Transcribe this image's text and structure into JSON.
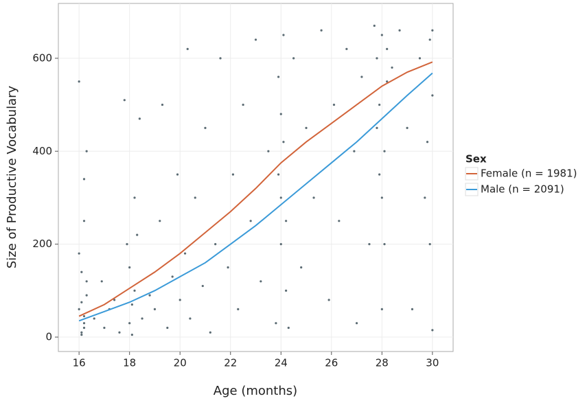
{
  "chart_data": {
    "type": "scatter",
    "x_label": "Age (months)",
    "y_label": "Size of Productive Vocabulary",
    "xlim": [
      15.18,
      30.82
    ],
    "ylim": [
      -31,
      718
    ],
    "xticks": [
      16,
      18,
      20,
      22,
      24,
      26,
      28,
      30
    ],
    "yticks": [
      0,
      200,
      400,
      600
    ],
    "grid": true,
    "legend_title": "Sex",
    "legend_position": "right",
    "series": [
      {
        "type": "scatter",
        "color": "#5b6b73",
        "x": [
          16.1,
          16.2,
          16.0,
          16.3,
          16.1,
          16.2,
          16.0,
          16.3,
          16.1,
          16.2,
          16.1,
          16.2,
          16.3,
          16.0,
          16.2,
          16.6,
          16.9,
          17.0,
          17.2,
          17.4,
          17.6,
          17.8,
          17.9,
          18.0,
          18.1,
          18.2,
          18.0,
          18.3,
          18.1,
          18.2,
          18.4,
          18.5,
          18.8,
          19.0,
          19.2,
          19.3,
          19.5,
          19.7,
          19.9,
          20.0,
          20.2,
          20.3,
          20.4,
          20.6,
          20.9,
          21.0,
          21.2,
          21.4,
          21.6,
          21.9,
          22.1,
          22.3,
          22.5,
          22.8,
          23.0,
          23.2,
          23.5,
          23.8,
          23.9,
          24.0,
          24.0,
          24.1,
          24.2,
          24.1,
          24.0,
          24.3,
          24.2,
          23.9,
          24.5,
          24.8,
          25.0,
          25.3,
          25.6,
          25.9,
          26.1,
          26.3,
          26.6,
          26.9,
          27.0,
          27.2,
          27.5,
          27.7,
          27.8,
          27.9,
          28.0,
          28.1,
          28.0,
          28.2,
          27.8,
          28.1,
          28.0,
          28.2,
          27.9,
          28.4,
          28.7,
          29.0,
          29.2,
          29.5,
          29.7,
          29.9,
          30.0,
          29.9,
          30.0,
          29.8,
          30.0
        ],
        "values": [
          10,
          30,
          60,
          90,
          140,
          250,
          550,
          400,
          5,
          45,
          75,
          20,
          120,
          180,
          340,
          40,
          120,
          20,
          60,
          80,
          10,
          510,
          200,
          30,
          70,
          100,
          150,
          220,
          5,
          300,
          470,
          40,
          90,
          60,
          250,
          500,
          20,
          130,
          350,
          80,
          180,
          620,
          40,
          300,
          110,
          450,
          10,
          200,
          600,
          150,
          350,
          60,
          500,
          250,
          640,
          120,
          400,
          30,
          560,
          200,
          300,
          420,
          100,
          650,
          480,
          20,
          250,
          350,
          600,
          150,
          450,
          300,
          660,
          80,
          500,
          250,
          620,
          400,
          30,
          560,
          200,
          670,
          600,
          500,
          650,
          400,
          300,
          550,
          450,
          200,
          60,
          620,
          350,
          580,
          660,
          450,
          60,
          600,
          300,
          640,
          520,
          200,
          15,
          420,
          660
        ]
      },
      {
        "type": "line",
        "name": "Female (n = 1981)",
        "color": "#d2643a",
        "x": [
          16,
          17,
          18,
          19,
          20,
          21,
          22,
          23,
          24,
          25,
          26,
          27,
          28,
          29,
          30
        ],
        "values": [
          45,
          70,
          105,
          140,
          180,
          225,
          270,
          320,
          375,
          420,
          460,
          500,
          540,
          570,
          592
        ]
      },
      {
        "type": "line",
        "name": "Male (n = 2091)",
        "color": "#3a9ad8",
        "x": [
          16,
          17,
          18,
          19,
          20,
          21,
          22,
          23,
          24,
          25,
          26,
          27,
          28,
          29,
          30
        ],
        "values": [
          35,
          55,
          75,
          100,
          130,
          160,
          200,
          240,
          285,
          330,
          375,
          420,
          470,
          520,
          568
        ]
      }
    ]
  }
}
